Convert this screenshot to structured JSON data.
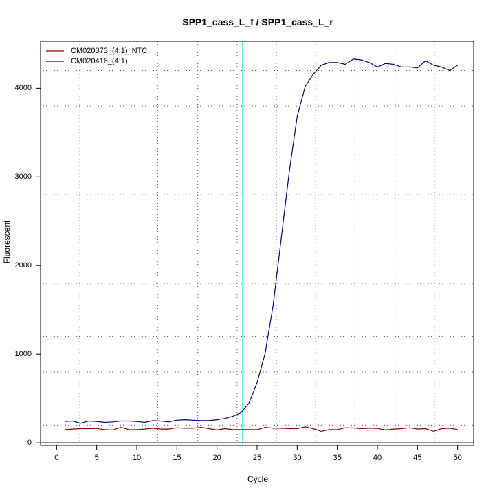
{
  "chart_data": {
    "type": "line",
    "title": "SPP1_cass_L_f / SPP1_cass_L_r",
    "xlabel": "Cycle",
    "ylabel": "Fluorescent",
    "xlim": [
      -2,
      52
    ],
    "ylim": [
      -30,
      4530
    ],
    "x_ticks": [
      0,
      5,
      10,
      15,
      20,
      25,
      30,
      35,
      40,
      45,
      50
    ],
    "y_ticks": [
      0,
      1000,
      2000,
      3000,
      4000
    ],
    "x_grid": [
      2.9,
      7.9,
      12.6,
      17.6,
      22.5,
      27.4,
      32.3,
      37.2,
      42.2,
      47.1
    ],
    "y_grid": [
      200,
      800,
      1200,
      1800,
      2200,
      2800,
      3200,
      3800,
      4200
    ],
    "grid": true,
    "threshold": {
      "x": 23.2,
      "color": "#00e5ee"
    },
    "baseline": {
      "y": 0,
      "color": "#8b0000"
    },
    "legend_position": "top-left",
    "series": [
      {
        "name": "CM020373_(4:1)_NTC",
        "color": "#8b0000",
        "x": [
          1,
          2,
          3,
          4,
          5,
          6,
          7,
          8,
          9,
          10,
          11,
          12,
          13,
          14,
          15,
          16,
          17,
          18,
          19,
          20,
          21,
          22,
          23,
          24,
          25,
          26,
          27,
          28,
          29,
          30,
          31,
          32,
          33,
          34,
          35,
          36,
          37,
          38,
          39,
          40,
          41,
          42,
          43,
          44,
          45,
          46,
          47,
          48,
          49,
          50
        ],
        "values": [
          150,
          155,
          160,
          160,
          162,
          150,
          145,
          175,
          150,
          148,
          155,
          165,
          155,
          155,
          170,
          165,
          165,
          175,
          160,
          145,
          160,
          148,
          150,
          150,
          148,
          175,
          165,
          165,
          160,
          160,
          180,
          160,
          130,
          150,
          148,
          170,
          168,
          160,
          165,
          163,
          145,
          155,
          160,
          170,
          155,
          160,
          130,
          160,
          165,
          150
        ]
      },
      {
        "name": "CM020416_(4:1)",
        "color": "#000080",
        "x": [
          1,
          2,
          3,
          4,
          5,
          6,
          7,
          8,
          9,
          10,
          11,
          12,
          13,
          14,
          15,
          16,
          17,
          18,
          19,
          20,
          21,
          22,
          23,
          24,
          25,
          26,
          27,
          28,
          29,
          30,
          31,
          32,
          33,
          34,
          35,
          36,
          37,
          38,
          39,
          40,
          41,
          42,
          43,
          44,
          45,
          46,
          47,
          48,
          49,
          50
        ],
        "values": [
          240,
          245,
          220,
          245,
          240,
          230,
          235,
          245,
          245,
          240,
          230,
          250,
          245,
          235,
          255,
          260,
          255,
          250,
          250,
          260,
          275,
          300,
          340,
          450,
          680,
          1010,
          1550,
          2300,
          3050,
          3680,
          4020,
          4160,
          4260,
          4290,
          4290,
          4270,
          4330,
          4320,
          4290,
          4240,
          4280,
          4270,
          4240,
          4240,
          4230,
          4310,
          4260,
          4240,
          4200,
          4260
        ]
      }
    ]
  }
}
